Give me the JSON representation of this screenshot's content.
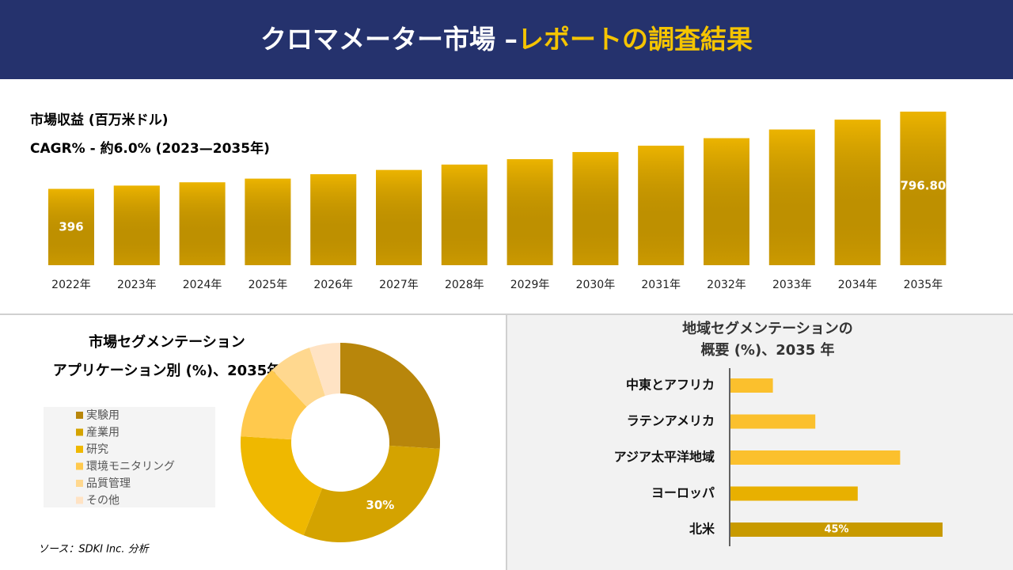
{
  "header": {
    "title_main": "クロマメーター市場 –",
    "title_accent": "レポートの調査結果"
  },
  "source": "ソース：SDKI Inc. 分析",
  "chart_data": [
    {
      "type": "bar",
      "title": "市場収益 (百万米ドル)",
      "subtitle": "CAGR% - 約6.0% (2023—2035年)",
      "categories": [
        "2022年",
        "2023年",
        "2024年",
        "2025年",
        "2026年",
        "2027年",
        "2028年",
        "2029年",
        "2030年",
        "2031年",
        "2032年",
        "2033年",
        "2034年",
        "2035年"
      ],
      "values": [
        396,
        413,
        430,
        449,
        472,
        494,
        522,
        550,
        587,
        620,
        659,
        704,
        755,
        796.8
      ],
      "value_labels": [
        "396",
        null,
        null,
        null,
        null,
        null,
        null,
        null,
        null,
        null,
        null,
        null,
        null,
        "796.80"
      ],
      "color": "#d9a400"
    },
    {
      "type": "donut",
      "title": "市場セグメンテーション",
      "subtitle": "アプリケーション別 (%)、2035年",
      "categories": [
        "実験用",
        "産業用",
        "研究",
        "環境モニタリング",
        "品質管理",
        "その他"
      ],
      "values": [
        26,
        30,
        20,
        12,
        7,
        5
      ],
      "value_labels": [
        null,
        "30%",
        null,
        null,
        null,
        null
      ],
      "colors": [
        "#b8860b",
        "#d4a300",
        "#efb800",
        "#ffc94d",
        "#ffd88f",
        "#ffe3c4"
      ]
    },
    {
      "type": "barh",
      "title": "地域セグメンテーションの",
      "subtitle": "概要 (%)、2035 年",
      "categories": [
        "中東とアフリカ",
        "ラテンアメリカ",
        "アジア太平洋地域",
        "ヨーロッパ",
        "北米"
      ],
      "values": [
        9,
        18,
        36,
        27,
        45
      ],
      "value_labels": [
        null,
        null,
        null,
        null,
        "45%"
      ],
      "colors": [
        "#fbc02d",
        "#fbc02d",
        "#fbc02d",
        "#e8b000",
        "#c89a00"
      ]
    }
  ]
}
